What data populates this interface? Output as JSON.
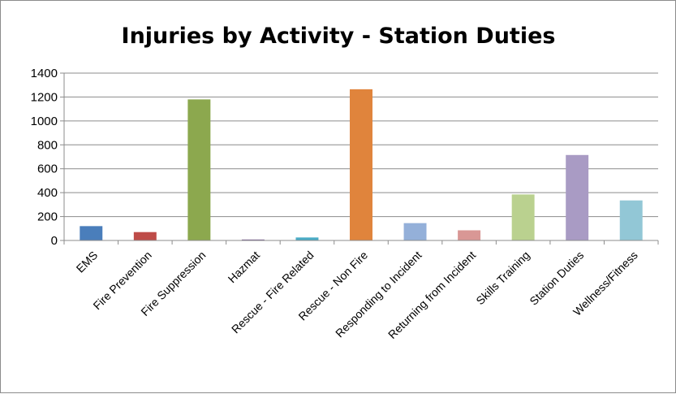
{
  "chart_data": {
    "type": "bar",
    "title": "Injuries by Activity - Station Duties",
    "xlabel": "",
    "ylabel": "",
    "ylim": [
      0,
      1400
    ],
    "yticks": [
      0,
      200,
      400,
      600,
      800,
      1000,
      1200,
      1400
    ],
    "grid": true,
    "legend": "none",
    "categories": [
      "EMS",
      "Fire Prevention",
      "Fire Suppression",
      "Hazmat",
      "Rescue - Fire Related",
      "Rescue - Non Fire",
      "Responding to Incident",
      "Returning from Incident",
      "Skills Training",
      "Station Duties",
      "Wellness/Fitness"
    ],
    "values": [
      120,
      70,
      1180,
      8,
      25,
      1265,
      145,
      85,
      385,
      715,
      335
    ],
    "colors": [
      "#4a7ebb",
      "#be4b48",
      "#8ca84e",
      "#7d6199",
      "#4aacc6",
      "#e0843c",
      "#94b0d9",
      "#d99795",
      "#bad18f",
      "#a99bc4",
      "#92c7d6"
    ]
  }
}
